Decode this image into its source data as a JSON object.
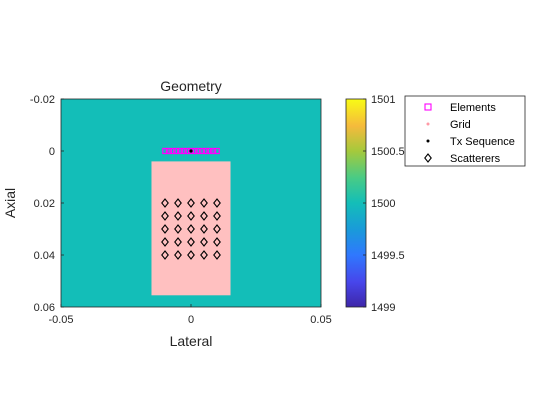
{
  "chart_data": {
    "type": "heatmap",
    "title": "Geometry",
    "xlabel": "Lateral",
    "ylabel": "Axial",
    "xlim": [
      -0.05,
      0.05
    ],
    "ylim": [
      -0.02,
      0.06
    ],
    "y_reversed": true,
    "x_ticks": [
      -0.05,
      0,
      0.05
    ],
    "x_tick_labels": [
      "-0.05",
      "0",
      "0.05"
    ],
    "y_ticks": [
      -0.02,
      0,
      0.02,
      0.04,
      0.06
    ],
    "y_tick_labels": [
      "-0.02",
      "0",
      "0.02",
      "0.04",
      "0.06"
    ],
    "background_value": 1500,
    "background_color": "#13BEB8",
    "regions": [
      {
        "x": [
          -0.0152,
          0.0152
        ],
        "y": [
          0.004,
          0.0555
        ],
        "color": "#FFC0C0"
      }
    ],
    "series": [
      {
        "name": "Elements",
        "marker": "square",
        "color": "#FF00FF",
        "x": [
          -0.0099,
          -0.0085,
          -0.0071,
          -0.0057,
          -0.0042,
          -0.0028,
          -0.0014,
          0,
          0.0014,
          0.0028,
          0.0042,
          0.0057,
          0.0071,
          0.0085,
          0.0099
        ],
        "y": [
          0,
          0,
          0,
          0,
          0,
          0,
          0,
          0,
          0,
          0,
          0,
          0,
          0,
          0,
          0
        ]
      },
      {
        "name": "Grid",
        "marker": "point",
        "color": "#FF9AA6",
        "x": [],
        "y": []
      },
      {
        "name": "Tx Sequence",
        "marker": "point",
        "color": "#000000",
        "x": [
          0
        ],
        "y": [
          0
        ]
      },
      {
        "name": "Scatterers",
        "marker": "diamond",
        "color": "#000000",
        "x": [
          -0.01,
          -0.005,
          0,
          0.005,
          0.01,
          -0.01,
          -0.005,
          0,
          0.005,
          0.01,
          -0.01,
          -0.005,
          0,
          0.005,
          0.01,
          -0.01,
          -0.005,
          0,
          0.005,
          0.01,
          -0.01,
          -0.005,
          0,
          0.005,
          0.01
        ],
        "y": [
          0.02,
          0.02,
          0.02,
          0.02,
          0.02,
          0.025,
          0.025,
          0.025,
          0.025,
          0.025,
          0.03,
          0.03,
          0.03,
          0.03,
          0.03,
          0.035,
          0.035,
          0.035,
          0.035,
          0.035,
          0.04,
          0.04,
          0.04,
          0.04,
          0.04
        ]
      }
    ],
    "colorbar": {
      "range": [
        1499,
        1501
      ],
      "ticks": [
        1499,
        1499.5,
        1500,
        1500.5,
        1501
      ],
      "tick_labels": [
        "1499",
        "1499.5",
        "1500",
        "1500.5",
        "1501"
      ],
      "colormap": "parula"
    },
    "legend": {
      "entries": [
        "Elements",
        "Grid",
        "Tx Sequence",
        "Scatterers"
      ],
      "placement": "right"
    }
  }
}
